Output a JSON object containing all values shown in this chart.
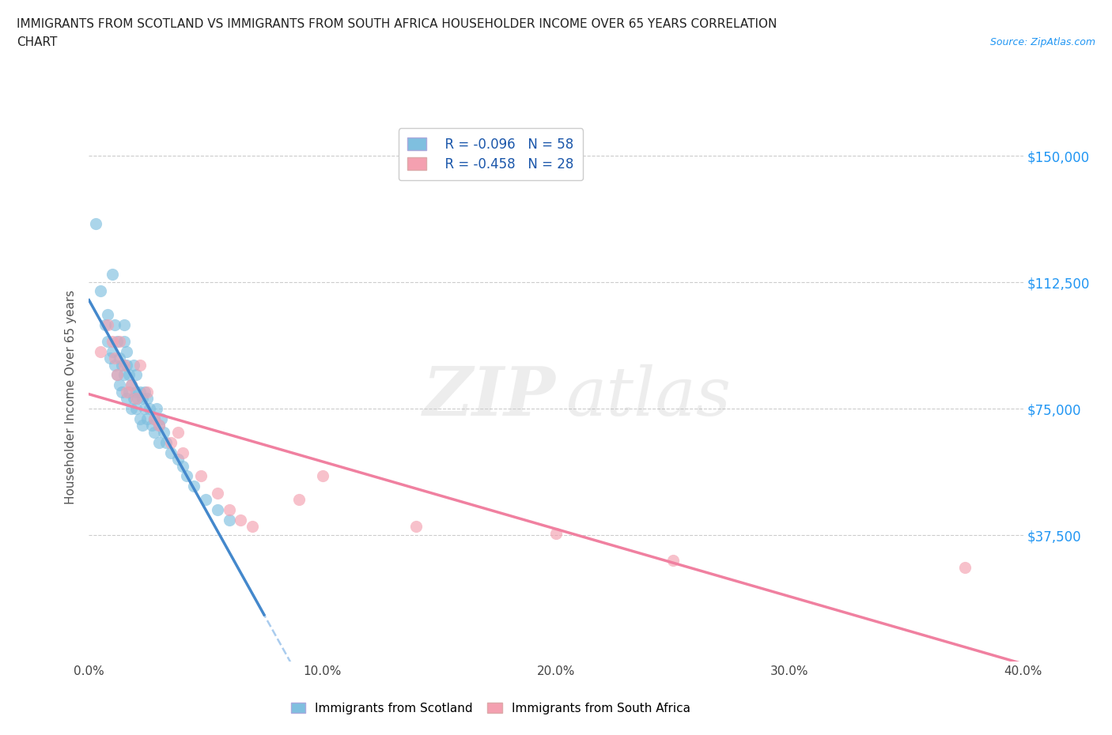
{
  "title_line1": "IMMIGRANTS FROM SCOTLAND VS IMMIGRANTS FROM SOUTH AFRICA HOUSEHOLDER INCOME OVER 65 YEARS CORRELATION",
  "title_line2": "CHART",
  "source_text": "Source: ZipAtlas.com",
  "ylabel": "Householder Income Over 65 years",
  "xlim": [
    0.0,
    0.4
  ],
  "ylim": [
    0,
    157000
  ],
  "xtick_vals": [
    0.0,
    0.1,
    0.2,
    0.3,
    0.4
  ],
  "xtick_labels": [
    "0.0%",
    "10.0%",
    "20.0%",
    "30.0%",
    "40.0%"
  ],
  "ytick_vals": [
    37500,
    75000,
    112500,
    150000
  ],
  "ytick_labels": [
    "$37,500",
    "$75,000",
    "$112,500",
    "$150,000"
  ],
  "scotland_color": "#7fbfdf",
  "southafrica_color": "#f4a0b0",
  "trendline_scotland_color": "#4488cc",
  "trendline_dashed_color": "#aaccee",
  "trendline_southafrica_color": "#f080a0",
  "scotland_R": -0.096,
  "scotland_N": 58,
  "southafrica_R": -0.458,
  "southafrica_N": 28,
  "scotland_points_x": [
    0.003,
    0.005,
    0.01,
    0.007,
    0.008,
    0.008,
    0.009,
    0.01,
    0.011,
    0.011,
    0.012,
    0.012,
    0.013,
    0.013,
    0.014,
    0.014,
    0.015,
    0.015,
    0.015,
    0.016,
    0.016,
    0.016,
    0.017,
    0.017,
    0.018,
    0.018,
    0.019,
    0.019,
    0.02,
    0.02,
    0.02,
    0.021,
    0.022,
    0.022,
    0.023,
    0.023,
    0.024,
    0.024,
    0.025,
    0.025,
    0.026,
    0.027,
    0.028,
    0.028,
    0.029,
    0.03,
    0.03,
    0.031,
    0.032,
    0.033,
    0.035,
    0.038,
    0.04,
    0.042,
    0.045,
    0.05,
    0.055,
    0.06
  ],
  "scotland_points_y": [
    130000,
    110000,
    115000,
    100000,
    95000,
    103000,
    90000,
    92000,
    88000,
    100000,
    95000,
    85000,
    90000,
    82000,
    88000,
    80000,
    95000,
    100000,
    85000,
    88000,
    92000,
    78000,
    80000,
    85000,
    75000,
    82000,
    78000,
    88000,
    80000,
    75000,
    85000,
    78000,
    72000,
    80000,
    70000,
    78000,
    75000,
    80000,
    72000,
    78000,
    75000,
    70000,
    72000,
    68000,
    75000,
    70000,
    65000,
    72000,
    68000,
    65000,
    62000,
    60000,
    58000,
    55000,
    52000,
    48000,
    45000,
    42000
  ],
  "southafrica_points_x": [
    0.005,
    0.008,
    0.01,
    0.011,
    0.012,
    0.013,
    0.015,
    0.016,
    0.018,
    0.02,
    0.022,
    0.025,
    0.028,
    0.03,
    0.035,
    0.038,
    0.04,
    0.048,
    0.055,
    0.06,
    0.065,
    0.07,
    0.09,
    0.1,
    0.14,
    0.2,
    0.25,
    0.375
  ],
  "southafrica_points_y": [
    92000,
    100000,
    95000,
    90000,
    85000,
    95000,
    88000,
    80000,
    82000,
    78000,
    88000,
    80000,
    72000,
    70000,
    65000,
    68000,
    62000,
    55000,
    50000,
    45000,
    42000,
    40000,
    48000,
    55000,
    40000,
    38000,
    30000,
    28000
  ]
}
